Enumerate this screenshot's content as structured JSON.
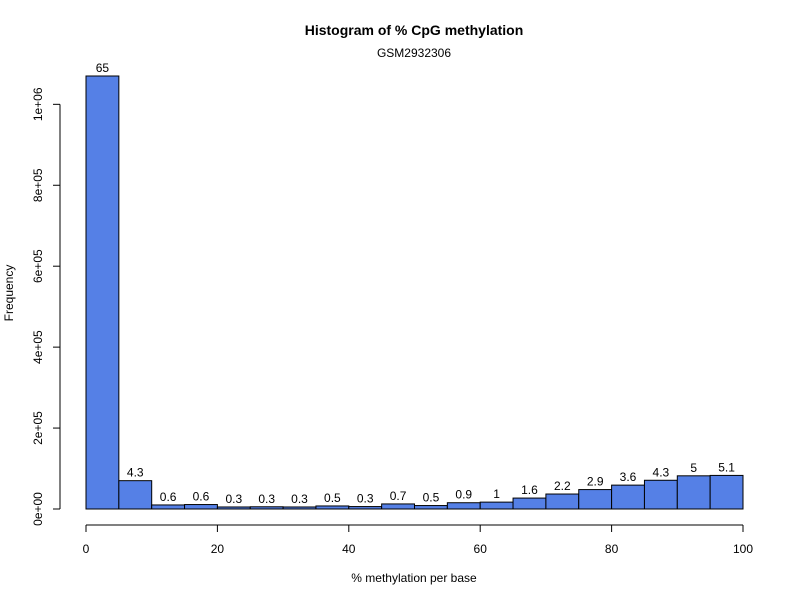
{
  "chart_data": {
    "type": "bar",
    "title": "Histogram of % CpG methylation",
    "subtitle": "GSM2932306",
    "xlabel": "% methylation per base",
    "ylabel": "Frequency",
    "bin_edges": [
      0,
      5,
      10,
      15,
      20,
      25,
      30,
      35,
      40,
      45,
      50,
      55,
      60,
      65,
      70,
      75,
      80,
      85,
      90,
      95,
      100
    ],
    "values": [
      1070000,
      70000,
      10000,
      11000,
      5000,
      5500,
      5000,
      7500,
      6000,
      12500,
      8500,
      15500,
      17000,
      27000,
      37000,
      48000,
      59000,
      71000,
      82000,
      83000
    ],
    "bar_labels": [
      "65",
      "4.3",
      "0.6",
      "0.6",
      "0.3",
      "0.3",
      "0.3",
      "0.5",
      "0.3",
      "0.7",
      "0.5",
      "0.9",
      "1",
      "1.6",
      "2.2",
      "2.9",
      "3.6",
      "4.3",
      "5",
      "5.1"
    ],
    "xlim": [
      0,
      100
    ],
    "ylim": [
      0,
      1070000
    ],
    "x_ticks": [
      0,
      20,
      40,
      60,
      80,
      100
    ],
    "x_tick_labels": [
      "0",
      "20",
      "40",
      "60",
      "80",
      "100"
    ],
    "y_ticks": [
      0,
      200000,
      400000,
      600000,
      800000,
      1000000
    ],
    "y_tick_labels": [
      "0e+00",
      "2e+05",
      "4e+05",
      "6e+05",
      "8e+05",
      "1e+06"
    ],
    "bar_color": "#5580e6",
    "grid": false,
    "legend": "none"
  }
}
